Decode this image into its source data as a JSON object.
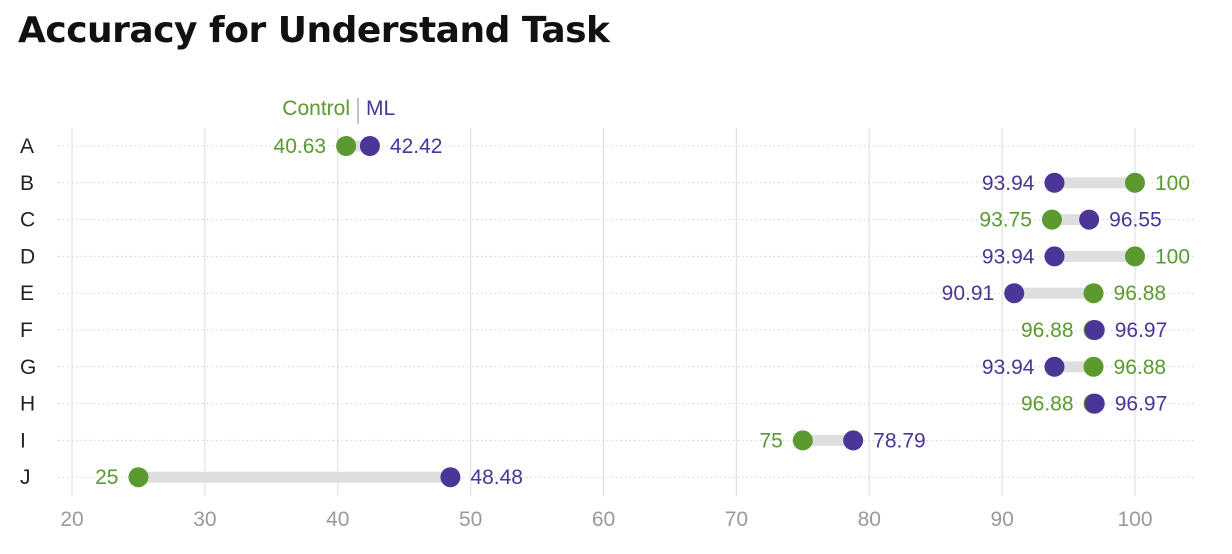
{
  "chart_data": {
    "type": "dot",
    "title": "Accuracy for Understand Task",
    "xlim": [
      20,
      100
    ],
    "x_ticks": [
      20,
      30,
      40,
      50,
      60,
      70,
      80,
      90,
      100
    ],
    "categories": [
      "A",
      "B",
      "C",
      "D",
      "E",
      "F",
      "G",
      "H",
      "I",
      "J"
    ],
    "series": [
      {
        "name": "Control",
        "color": "#5a9a2f",
        "values": [
          40.63,
          100,
          93.75,
          100,
          96.88,
          96.88,
          96.88,
          96.88,
          75,
          25
        ]
      },
      {
        "name": "ML",
        "color": "#4b3596",
        "values": [
          42.42,
          93.94,
          96.55,
          93.94,
          90.91,
          96.97,
          93.94,
          96.97,
          78.79,
          48.48
        ]
      }
    ],
    "grid": true,
    "legend": "labels-above-first-row"
  }
}
